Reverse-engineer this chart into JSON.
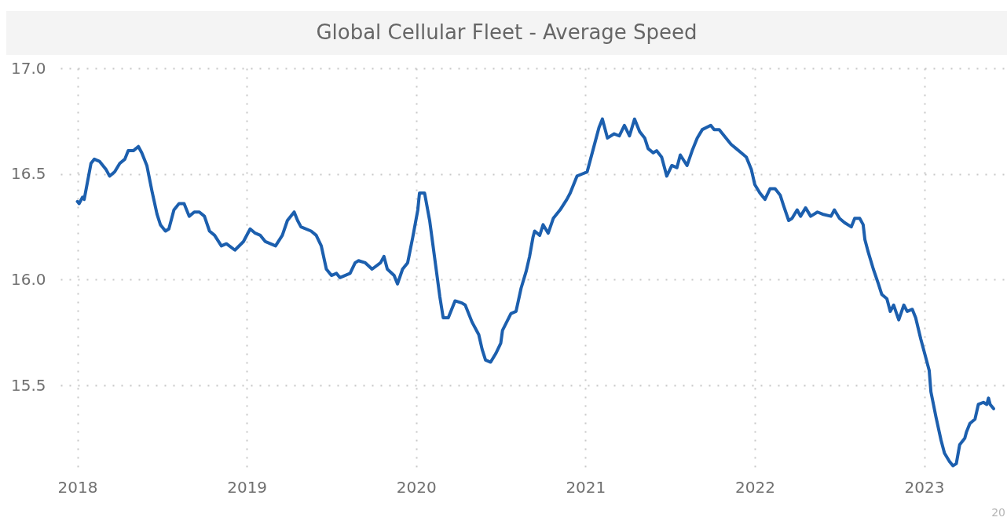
{
  "chart_data": {
    "type": "line",
    "title": "Global Cellular Fleet - Average Speed",
    "x": [
      2018.0,
      2018.01,
      2018.03,
      2018.04,
      2018.08,
      2018.1,
      2018.13,
      2018.17,
      2018.19,
      2018.22,
      2018.25,
      2018.28,
      2018.3,
      2018.33,
      2018.36,
      2018.38,
      2018.41,
      2018.44,
      2018.47,
      2018.49,
      2018.52,
      2018.54,
      2018.57,
      2018.6,
      2018.63,
      2018.66,
      2018.69,
      2018.72,
      2018.75,
      2018.78,
      2018.81,
      2018.85,
      2018.88,
      2018.93,
      2018.98,
      2019.02,
      2019.05,
      2019.08,
      2019.11,
      2019.17,
      2019.21,
      2019.24,
      2019.28,
      2019.3,
      2019.32,
      2019.38,
      2019.41,
      2019.44,
      2019.47,
      2019.5,
      2019.53,
      2019.55,
      2019.61,
      2019.64,
      2019.66,
      2019.7,
      2019.74,
      2019.79,
      2019.81,
      2019.83,
      2019.87,
      2019.89,
      2019.92,
      2019.95,
      2019.98,
      2020.01,
      2020.02,
      2020.05,
      2020.08,
      2020.11,
      2020.14,
      2020.16,
      2020.19,
      2020.23,
      2020.27,
      2020.29,
      2020.33,
      2020.37,
      2020.39,
      2020.41,
      2020.44,
      2020.47,
      2020.5,
      2020.51,
      2020.56,
      2020.59,
      2020.62,
      2020.65,
      2020.67,
      2020.69,
      2020.7,
      2020.73,
      2020.75,
      2020.78,
      2020.81,
      2020.85,
      2020.89,
      2020.91,
      2020.95,
      2020.98,
      2021.01,
      2021.03,
      2021.06,
      2021.08,
      2021.1,
      2021.13,
      2021.17,
      2021.2,
      2021.23,
      2021.26,
      2021.29,
      2021.32,
      2021.35,
      2021.37,
      2021.4,
      2021.42,
      2021.45,
      2021.47,
      2021.48,
      2021.51,
      2021.54,
      2021.56,
      2021.6,
      2021.63,
      2021.66,
      2021.69,
      2021.74,
      2021.76,
      2021.79,
      2021.83,
      2021.86,
      2021.89,
      2021.92,
      2021.95,
      2021.98,
      2022.0,
      2022.03,
      2022.06,
      2022.09,
      2022.12,
      2022.15,
      2022.17,
      2022.2,
      2022.22,
      2022.25,
      2022.27,
      2022.3,
      2022.33,
      2022.37,
      2022.4,
      2022.45,
      2022.47,
      2022.5,
      2022.53,
      2022.57,
      2022.59,
      2022.62,
      2022.64,
      2022.65,
      2022.67,
      2022.7,
      2022.73,
      2022.75,
      2022.78,
      2022.8,
      2022.82,
      2022.85,
      2022.88,
      2022.9,
      2022.93,
      2022.95,
      2022.98,
      2023.0,
      2023.03,
      2023.04,
      2023.07,
      2023.1,
      2023.12,
      2023.15,
      2023.17,
      2023.19,
      2023.21,
      2023.24,
      2023.25,
      2023.27,
      2023.3,
      2023.32,
      2023.35,
      2023.37,
      2023.38,
      2023.39,
      2023.41
    ],
    "series": [
      {
        "color": "#1c5fae",
        "values": [
          16.37,
          16.36,
          16.39,
          16.38,
          16.55,
          16.57,
          16.56,
          16.52,
          16.49,
          16.51,
          16.55,
          16.57,
          16.61,
          16.61,
          16.63,
          16.6,
          16.54,
          16.42,
          16.31,
          16.26,
          16.23,
          16.24,
          16.33,
          16.36,
          16.36,
          16.3,
          16.32,
          16.32,
          16.3,
          16.23,
          16.21,
          16.16,
          16.17,
          16.14,
          16.18,
          16.24,
          16.22,
          16.21,
          16.18,
          16.16,
          16.21,
          16.28,
          16.32,
          16.28,
          16.25,
          16.23,
          16.21,
          16.16,
          16.05,
          16.02,
          16.03,
          16.01,
          16.03,
          16.08,
          16.09,
          16.08,
          16.05,
          16.08,
          16.11,
          16.05,
          16.02,
          15.98,
          16.05,
          16.08,
          16.2,
          16.33,
          16.41,
          16.41,
          16.28,
          16.1,
          15.92,
          15.82,
          15.82,
          15.9,
          15.89,
          15.88,
          15.8,
          15.74,
          15.67,
          15.62,
          15.61,
          15.65,
          15.7,
          15.76,
          15.84,
          15.85,
          15.96,
          16.04,
          16.11,
          16.2,
          16.23,
          16.21,
          16.26,
          16.22,
          16.29,
          16.33,
          16.38,
          16.41,
          16.49,
          16.5,
          16.51,
          16.57,
          16.66,
          16.72,
          16.76,
          16.67,
          16.69,
          16.68,
          16.73,
          16.68,
          16.76,
          16.7,
          16.67,
          16.62,
          16.6,
          16.61,
          16.58,
          16.52,
          16.49,
          16.54,
          16.53,
          16.59,
          16.54,
          16.61,
          16.67,
          16.71,
          16.73,
          16.71,
          16.71,
          16.67,
          16.64,
          16.62,
          16.6,
          16.58,
          16.52,
          16.45,
          16.41,
          16.38,
          16.43,
          16.43,
          16.4,
          16.35,
          16.28,
          16.29,
          16.33,
          16.3,
          16.34,
          16.3,
          16.32,
          16.31,
          16.3,
          16.33,
          16.29,
          16.27,
          16.25,
          16.29,
          16.29,
          16.26,
          16.19,
          16.13,
          16.05,
          15.98,
          15.93,
          15.91,
          15.85,
          15.88,
          15.81,
          15.88,
          15.85,
          15.86,
          15.82,
          15.72,
          15.66,
          15.57,
          15.47,
          15.35,
          15.24,
          15.18,
          15.14,
          15.12,
          15.13,
          15.22,
          15.25,
          15.28,
          15.32,
          15.34,
          15.41,
          15.42,
          15.41,
          15.44,
          15.41,
          15.39
        ]
      }
    ],
    "xlim": [
      2017.9,
      2023.48
    ],
    "xticks": [
      2018,
      2019,
      2020,
      2021,
      2022,
      2023
    ],
    "ylim": [
      15.1,
      17.0
    ],
    "yticks": [
      {
        "value": 15.5,
        "label": "15.5"
      },
      {
        "value": 16,
        "label": "16.0"
      },
      {
        "value": 16.5,
        "label": "16.5"
      },
      {
        "value": 17,
        "label": "17.0"
      }
    ],
    "grid": true,
    "annotations": [
      "20"
    ]
  }
}
